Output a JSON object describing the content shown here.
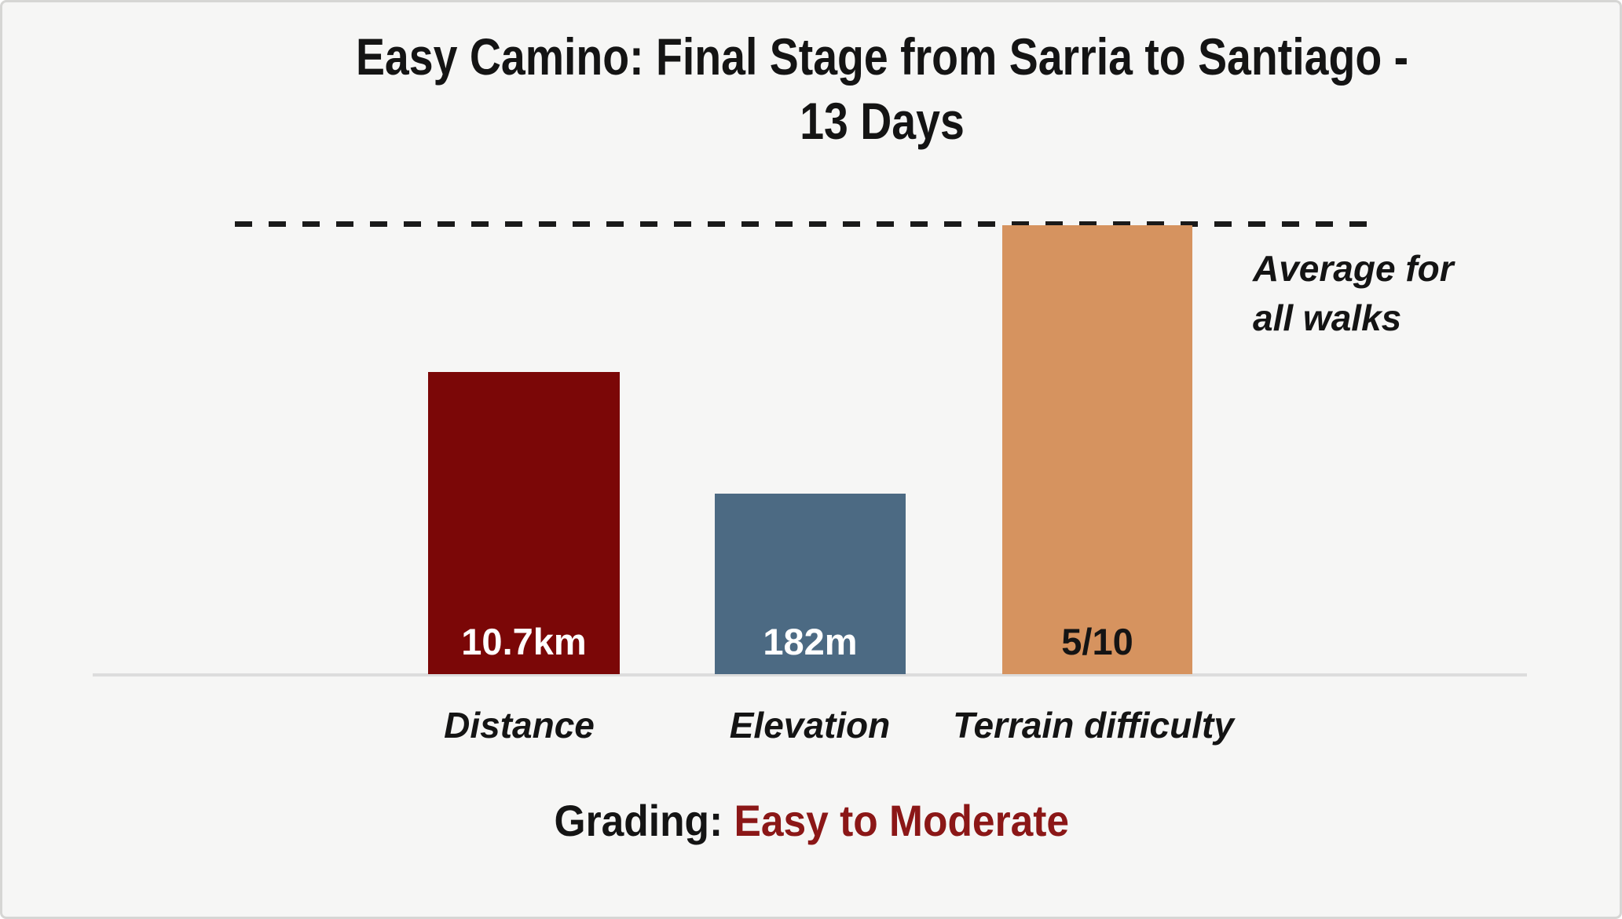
{
  "window": {
    "background": "#f6f6f5",
    "frame_color": "#d6d6d4"
  },
  "chart_data": {
    "type": "bar",
    "title": "Easy Camino: Final Stage from Sarria to Santiago - 13 Days",
    "title_line1": "Easy Camino: Final Stage from Sarria to Santiago -",
    "title_line2": "13 Days",
    "categories": [
      "Distance",
      "Elevation",
      "Terrain difficulty"
    ],
    "values": [
      10.7,
      182,
      5
    ],
    "value_labels": [
      "10.7km",
      "182m",
      "5/10"
    ],
    "bar_colors": [
      "#7b0707",
      "#4c6a83",
      "#d6935f"
    ],
    "value_label_colors": [
      "#ffffff",
      "#ffffff",
      "#141414"
    ],
    "bar_heights_pct_of_reference": [
      67,
      40,
      100
    ],
    "reference_line": {
      "label": "Average for all walks",
      "label_line1": "Average for",
      "label_line2": "all walks",
      "style": "dashed",
      "color": "#1a1a1a"
    },
    "axis_color": "#dcdcdc",
    "legend": "none",
    "grid": "off",
    "xlabel": "",
    "ylabel": ""
  },
  "footer": {
    "prefix": "Grading: ",
    "grade": "Easy to Moderate",
    "grade_color": "#8b1717",
    "prefix_color": "#141414"
  }
}
